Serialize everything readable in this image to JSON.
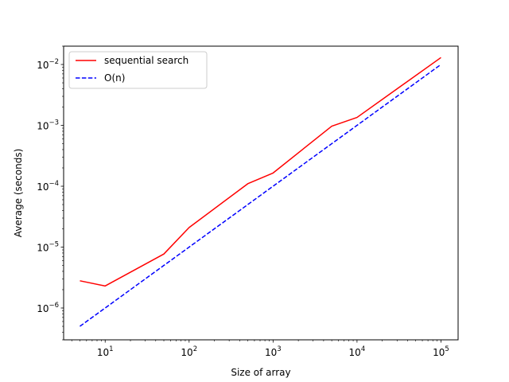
{
  "chart_data": {
    "type": "line",
    "xlabel": "Size of array",
    "ylabel": "Average (seconds)",
    "x_scale": "log",
    "y_scale": "log",
    "xlim": [
      3.2,
      160000
    ],
    "ylim": [
      3e-07,
      0.02
    ],
    "grid": false,
    "legend_position": "top-left",
    "x_ticks": [
      {
        "value": 10,
        "base": "10",
        "exp": "1"
      },
      {
        "value": 100,
        "base": "10",
        "exp": "2"
      },
      {
        "value": 1000,
        "base": "10",
        "exp": "3"
      },
      {
        "value": 10000,
        "base": "10",
        "exp": "4"
      },
      {
        "value": 100000,
        "base": "10",
        "exp": "5"
      }
    ],
    "y_ticks": [
      {
        "value": 1e-06,
        "base": "10",
        "exp": "−6"
      },
      {
        "value": 1e-05,
        "base": "10",
        "exp": "−5"
      },
      {
        "value": 0.0001,
        "base": "10",
        "exp": "−4"
      },
      {
        "value": 0.001,
        "base": "10",
        "exp": "−3"
      },
      {
        "value": 0.01,
        "base": "10",
        "exp": "−2"
      }
    ],
    "series": [
      {
        "name": "sequential search",
        "color": "#ff0000",
        "dash": "solid",
        "x": [
          5,
          10,
          50,
          100,
          500,
          1000,
          5000,
          10000,
          100000
        ],
        "y": [
          2.8e-06,
          2.3e-06,
          7.7e-06,
          2.1e-05,
          0.00011,
          0.000165,
          0.00097,
          0.00135,
          0.013
        ]
      },
      {
        "name": "O(n)",
        "color": "#0000ff",
        "dash": "dashed",
        "x": [
          5,
          10,
          50,
          100,
          500,
          1000,
          5000,
          10000,
          100000
        ],
        "y": [
          5e-07,
          1e-06,
          5e-06,
          1e-05,
          5e-05,
          0.0001,
          0.0005,
          0.001,
          0.01
        ]
      }
    ]
  }
}
